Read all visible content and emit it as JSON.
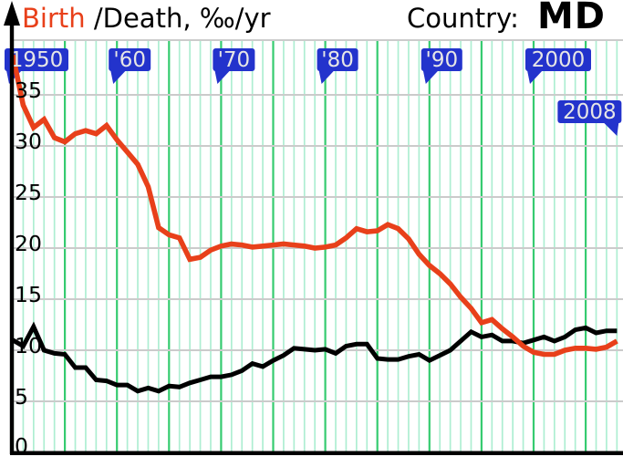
{
  "header": {
    "birth_label": "Birth",
    "rest_label": " /Death, ‰/yr",
    "country_label": "Country:",
    "country_value": "MD"
  },
  "chart_data": {
    "type": "line",
    "title": "Birth /Death, ‰/yr",
    "country": "MD",
    "unit": "‰/yr",
    "x": [
      1950,
      1951,
      1952,
      1953,
      1954,
      1955,
      1956,
      1957,
      1958,
      1959,
      1960,
      1961,
      1962,
      1963,
      1964,
      1965,
      1966,
      1967,
      1968,
      1969,
      1970,
      1971,
      1972,
      1973,
      1974,
      1975,
      1976,
      1977,
      1978,
      1979,
      1980,
      1981,
      1982,
      1983,
      1984,
      1985,
      1986,
      1987,
      1988,
      1989,
      1990,
      1991,
      1992,
      1993,
      1994,
      1995,
      1996,
      1997,
      1998,
      1999,
      2000,
      2001,
      2002,
      2003,
      2004,
      2005,
      2006,
      2007,
      2008
    ],
    "ylim": [
      0,
      40.5
    ],
    "yticks": [
      0,
      5,
      10,
      15,
      20,
      25,
      30,
      35
    ],
    "grid": {
      "h_color": "#cbcbcb",
      "v_minor_color": "#aeeed2",
      "v_major_color": "#36cb70",
      "v_major_every": 5,
      "grid_on": true
    },
    "colors": {
      "birth": "#e8401a",
      "death": "#000000",
      "tag_bg": "#2333cc",
      "tag_text": "#e6e6e6",
      "axis": "#000000"
    },
    "series": [
      {
        "name": "Birth",
        "color": "#e8401a",
        "values": [
          38.9,
          34.0,
          31.8,
          32.6,
          30.8,
          30.4,
          31.2,
          31.5,
          31.2,
          32.0,
          30.6,
          29.4,
          28.2,
          26.0,
          22.0,
          21.3,
          21.0,
          18.9,
          19.1,
          19.8,
          20.2,
          20.4,
          20.3,
          20.1,
          20.2,
          20.3,
          20.4,
          20.3,
          20.2,
          20.0,
          20.1,
          20.3,
          21.0,
          21.9,
          21.6,
          21.7,
          22.3,
          21.9,
          20.9,
          19.4,
          18.3,
          17.5,
          16.5,
          15.2,
          14.1,
          12.7,
          13.0,
          12.1,
          11.3,
          10.4,
          9.8,
          9.6,
          9.6,
          10.0,
          10.2,
          10.2,
          10.1,
          10.3,
          10.9
        ]
      },
      {
        "name": "Death",
        "color": "#000000",
        "values": [
          11.0,
          10.4,
          12.3,
          10.0,
          9.7,
          9.6,
          8.3,
          8.3,
          7.1,
          7.0,
          6.6,
          6.6,
          6.0,
          6.3,
          6.0,
          6.5,
          6.4,
          6.8,
          7.1,
          7.4,
          7.4,
          7.6,
          8.0,
          8.7,
          8.4,
          9.0,
          9.5,
          10.2,
          10.1,
          10.0,
          10.1,
          9.7,
          10.4,
          10.6,
          10.6,
          9.2,
          9.1,
          9.1,
          9.4,
          9.6,
          9.0,
          9.5,
          10.0,
          10.9,
          11.8,
          11.3,
          11.5,
          10.9,
          10.9,
          10.7,
          11.0,
          11.3,
          10.9,
          11.3,
          12.0,
          12.2,
          11.7,
          11.9,
          11.9
        ]
      }
    ],
    "markers": [
      {
        "label": "1950",
        "year": 1950,
        "pointer": "left",
        "row": 0
      },
      {
        "label": "'60",
        "year": 1960,
        "pointer": "left",
        "row": 0
      },
      {
        "label": "'70",
        "year": 1970,
        "pointer": "left",
        "row": 0
      },
      {
        "label": "'80",
        "year": 1980,
        "pointer": "left",
        "row": 0
      },
      {
        "label": "'90",
        "year": 1990,
        "pointer": "left",
        "row": 0
      },
      {
        "label": "2000",
        "year": 2000,
        "pointer": "left",
        "row": 0
      },
      {
        "label": "2008",
        "year": 2008,
        "pointer": "right",
        "row": 1
      }
    ]
  }
}
